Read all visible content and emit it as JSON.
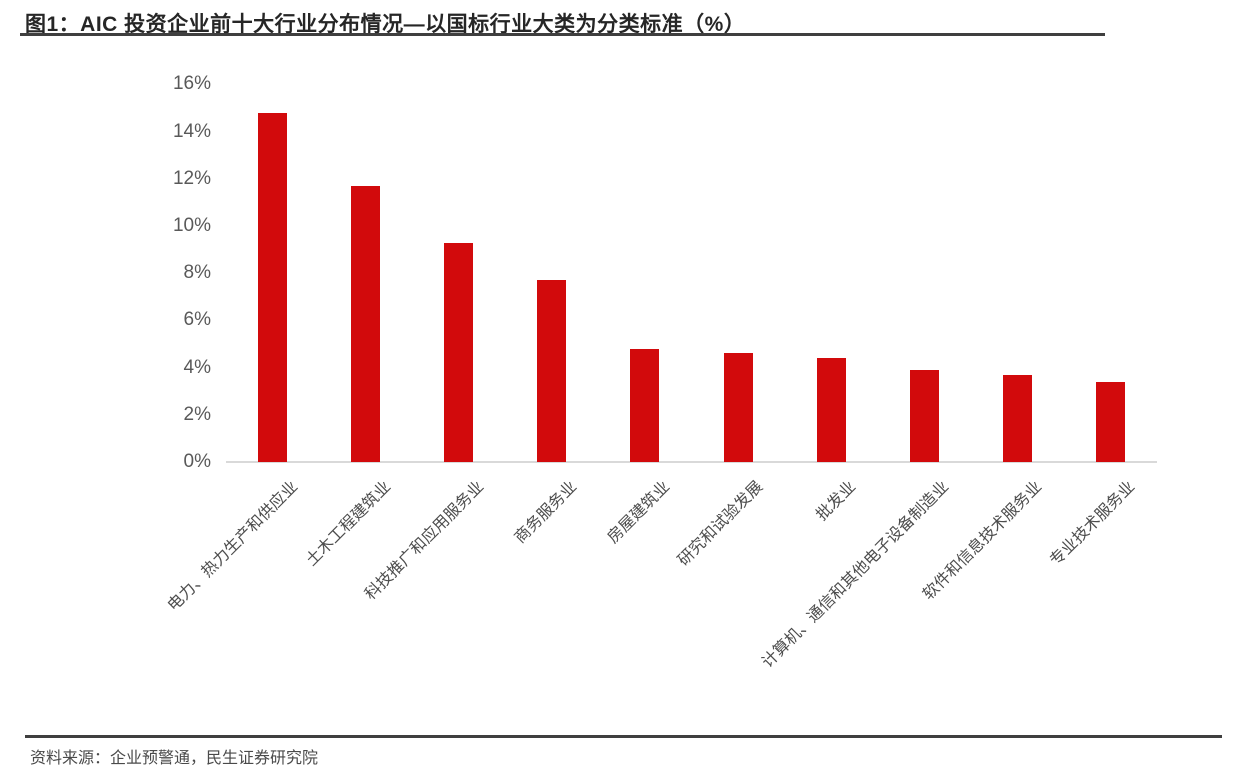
{
  "header": {
    "title": "图1：AIC 投资企业前十大行业分布情况—以国标行业大类为分类标准（%）"
  },
  "chart_data": {
    "type": "bar",
    "title": "AIC 投资企业前十大行业分布情况—以国标行业大类为分类标准（%）",
    "categories": [
      "电力、热力生产和供应业",
      "土木工程建筑业",
      "科技推广和应用服务业",
      "商务服务业",
      "房屋建筑业",
      "研究和试验发展",
      "批发业",
      "计算机、通信和其他电子设备制造业",
      "软件和信息技术服务业",
      "专业技术服务业"
    ],
    "values": [
      14.8,
      11.7,
      9.3,
      7.7,
      4.8,
      4.6,
      4.4,
      3.9,
      3.7,
      3.4
    ],
    "unit": "%",
    "xlabel": "",
    "ylabel": "",
    "ylim": [
      0,
      16
    ],
    "ytick_step": 2,
    "ytick_labels": [
      "0%",
      "2%",
      "4%",
      "6%",
      "8%",
      "10%",
      "12%",
      "14%",
      "16%"
    ],
    "grid": "off",
    "legend": "none",
    "bar_color": "#d20a0c",
    "axis_line_color": "#d9d9d9"
  },
  "footer": {
    "source": "资料来源：企业预警通，民生证券研究院"
  }
}
